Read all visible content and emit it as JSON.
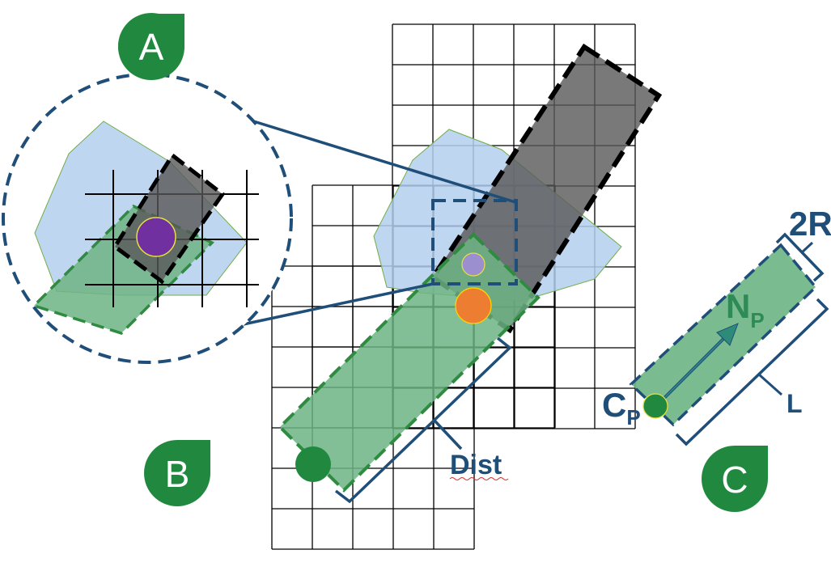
{
  "panels": {
    "a": {
      "badge": "A"
    },
    "b": {
      "badge": "B",
      "distance_label": "Dist"
    },
    "c": {
      "badge": "C",
      "radius_label": "2R",
      "length_label": "L",
      "normal_label": "N",
      "normal_subscript": "P",
      "center_label": "C",
      "center_subscript": "P"
    }
  },
  "colors": {
    "badge_green": "#21893f",
    "dark_blue": "#1f4e79",
    "light_blue_fill": "#b4cfee",
    "green_fill": "#6db484",
    "gray_fill": "#595858",
    "purple_point": "#7030a0",
    "lavender_point": "#9b8fd0",
    "orange_point": "#ed7d31",
    "teal_arrow": "#2e8b7a"
  },
  "icons": [
    "leaf-badge-icon",
    "circle-point-icon",
    "arrow-icon"
  ]
}
